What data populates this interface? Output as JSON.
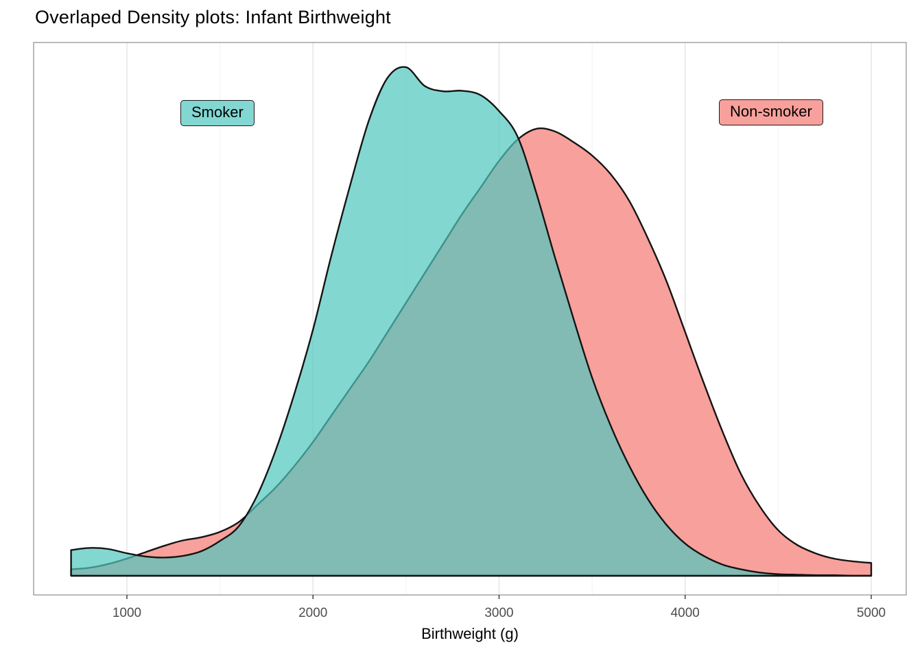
{
  "title": "Overlaped Density plots: Infant Birthweight",
  "x_axis": {
    "label": "Birthweight (g)",
    "ticks": [
      1000,
      2000,
      3000,
      4000,
      5000
    ],
    "minor_ticks": [
      1500,
      2500,
      3500,
      4500
    ]
  },
  "annotations": [
    {
      "id": "smoker",
      "label": "Smoker",
      "bg": "#83D7D2"
    },
    {
      "id": "nonsmoker",
      "label": "Non-smoker",
      "bg": "#F8A09B"
    }
  ],
  "colors": {
    "smoker_fill": "#4EC6BE",
    "smoker_fill_opacity": 0.7,
    "nonsmoker_fill": "#F8A09B",
    "curve_stroke": "#141414",
    "grid_major": "#E4E4E4",
    "grid_minor": "#F2F2F2",
    "panel_border": "#8C8C8C",
    "tick_text": "#4D4D4D",
    "panel_bg": "#FFFFFF"
  },
  "chart_data": {
    "type": "area",
    "subtype": "overlapping-density",
    "title": "Overlaped Density plots: Infant Birthweight",
    "xlabel": "Birthweight (g)",
    "ylabel": "",
    "xlim": [
      500,
      5190
    ],
    "ylim": [
      0,
      1
    ],
    "y_axis_visible": false,
    "grid": "vertical gridlines only, major every 1000 g",
    "legend": "in-plot boxed labels: Smoker (teal), Non-smoker (pink)",
    "x": [
      700,
      800,
      900,
      1000,
      1100,
      1200,
      1300,
      1400,
      1500,
      1600,
      1700,
      1800,
      1900,
      2000,
      2100,
      2200,
      2300,
      2400,
      2500,
      2600,
      2700,
      2800,
      2900,
      3000,
      3100,
      3200,
      3300,
      3400,
      3500,
      3600,
      3700,
      3800,
      3900,
      4000,
      4100,
      4200,
      4300,
      4400,
      4500,
      4600,
      4700,
      4800,
      4900,
      5000
    ],
    "series": [
      {
        "name": "Smoker",
        "values": [
          0.048,
          0.052,
          0.05,
          0.042,
          0.036,
          0.034,
          0.037,
          0.046,
          0.065,
          0.092,
          0.15,
          0.235,
          0.34,
          0.46,
          0.6,
          0.73,
          0.85,
          0.93,
          0.95,
          0.915,
          0.905,
          0.906,
          0.898,
          0.868,
          0.82,
          0.715,
          0.595,
          0.48,
          0.37,
          0.28,
          0.205,
          0.143,
          0.095,
          0.06,
          0.037,
          0.021,
          0.012,
          0.006,
          0.003,
          0.002,
          0.001,
          0.001,
          0.0,
          0.0
        ]
      },
      {
        "name": "Non-smoker",
        "values": [
          0.012,
          0.015,
          0.022,
          0.032,
          0.044,
          0.056,
          0.066,
          0.072,
          0.082,
          0.1,
          0.132,
          0.165,
          0.205,
          0.25,
          0.3,
          0.35,
          0.4,
          0.455,
          0.51,
          0.565,
          0.62,
          0.675,
          0.725,
          0.775,
          0.815,
          0.835,
          0.83,
          0.81,
          0.785,
          0.75,
          0.7,
          0.63,
          0.55,
          0.455,
          0.36,
          0.27,
          0.19,
          0.13,
          0.085,
          0.058,
          0.042,
          0.032,
          0.027,
          0.024
        ]
      }
    ]
  }
}
